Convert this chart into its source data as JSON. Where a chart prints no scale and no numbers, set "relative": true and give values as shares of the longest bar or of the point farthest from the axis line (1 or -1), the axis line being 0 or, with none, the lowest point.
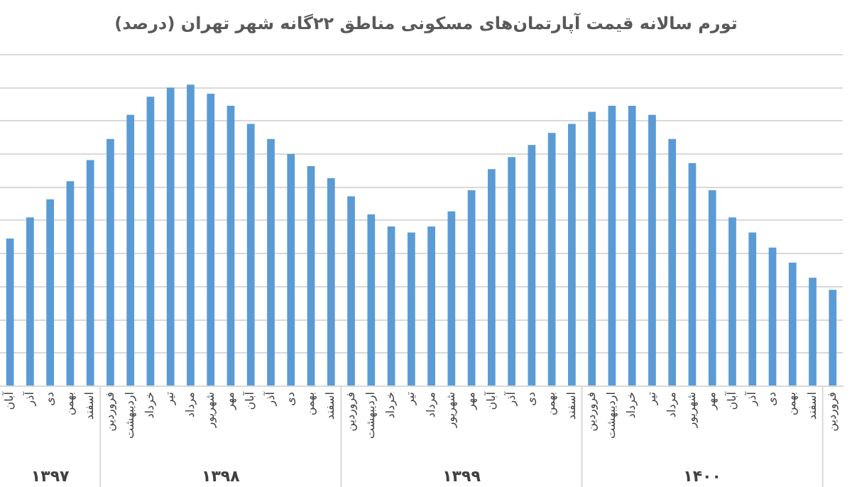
{
  "chart_data": {
    "type": "bar",
    "title": "تورم سالانه قیمت آپارتمان‌های مسکونی مناطق ۲۲گانه شهر تهران (درصد)",
    "relative": true,
    "grid": "y",
    "color": "#5b9bd5",
    "categories": [
      "آبان",
      "آذر",
      "دی",
      "بهمن",
      "اسفند",
      "فروردین",
      "اردیبهشت",
      "خرداد",
      "تیر",
      "مرداد",
      "شهریور",
      "مهر",
      "آبان",
      "آذر",
      "دی",
      "بهمن",
      "اسفند",
      "فروردین",
      "اردیبهشت",
      "خرداد",
      "تیر",
      "مرداد",
      "شهریور",
      "مهر",
      "آبان",
      "آذر",
      "دی",
      "بهمن",
      "اسفند",
      "فروردین",
      "اردیبهشت",
      "خرداد",
      "تیر",
      "مرداد",
      "شهریور",
      "مهر",
      "آبان",
      "آذر",
      "دی",
      "بهمن",
      "اسفند",
      "فروردین"
    ],
    "values": [
      0.49,
      0.56,
      0.62,
      0.68,
      0.75,
      0.82,
      0.9,
      0.96,
      0.99,
      1,
      0.97,
      0.93,
      0.87,
      0.82,
      0.77,
      0.73,
      0.69,
      0.63,
      0.57,
      0.53,
      0.51,
      0.53,
      0.58,
      0.65,
      0.72,
      0.76,
      0.8,
      0.84,
      0.87,
      0.91,
      0.93,
      0.93,
      0.9,
      0.82,
      0.74,
      0.65,
      0.56,
      0.51,
      0.46,
      0.41,
      0.36,
      0.32
    ],
    "annotations": [
      "۱۳۹۷",
      "۱۳۹۸",
      "۱۳۹۹",
      "۱۴۰۰"
    ]
  }
}
